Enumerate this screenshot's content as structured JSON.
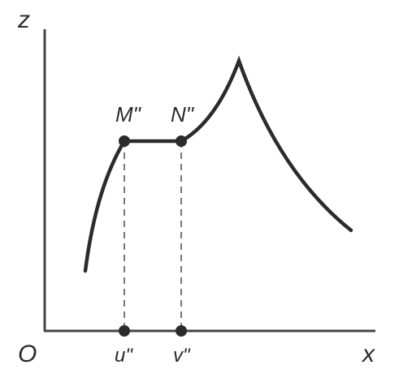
{
  "axes": {
    "vertical_label": "z",
    "horizontal_label": "x",
    "origin_label": "O"
  },
  "points": {
    "m": "M\"",
    "n": "N\"",
    "u": "u\"",
    "v": "v\""
  },
  "colors": {
    "ink": "#2b2b2b",
    "axis": "#444444",
    "dashed": "#777777",
    "background": "#ffffff"
  }
}
